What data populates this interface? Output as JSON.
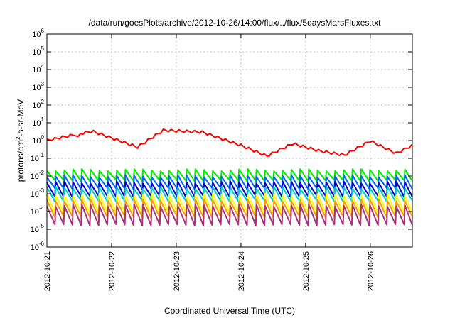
{
  "chart_data": {
    "type": "line",
    "title": "/data/run/goesPlots/archive/2012-10-26/14:00/flux/../flux/5daysMarsFluxes.txt",
    "xlabel": "Coordinated Universal Time (UTC)",
    "ylabel_base": "protons/cm",
    "ylabel_sup": "2",
    "ylabel_rest": "-s-sr-MeV",
    "y_scale": "log",
    "y_range_exp": [
      -6,
      6
    ],
    "y_ticks": [
      {
        "base": "10",
        "exp": "6",
        "value": 6
      },
      {
        "base": "10",
        "exp": "5",
        "value": 5
      },
      {
        "base": "10",
        "exp": "4",
        "value": 4
      },
      {
        "base": "10",
        "exp": "3",
        "value": 3
      },
      {
        "base": "10",
        "exp": "2",
        "value": 2
      },
      {
        "base": "10",
        "exp": "1",
        "value": 1
      },
      {
        "base": "10",
        "exp": "0",
        "value": 0
      },
      {
        "base": "10",
        "exp": "-1",
        "value": -1
      },
      {
        "base": "10",
        "exp": "-2",
        "value": -2
      },
      {
        "base": "10",
        "exp": "-3",
        "value": -3
      },
      {
        "base": "10",
        "exp": "-4",
        "value": -4
      },
      {
        "base": "10",
        "exp": "-5",
        "value": -5
      },
      {
        "base": "10",
        "exp": "-6",
        "value": -6
      }
    ],
    "x_ticks": [
      "2012-10-21",
      "2012-10-22",
      "2012-10-23",
      "2012-10-24",
      "2012-10-25",
      "2012-10-26"
    ],
    "x_range_days": [
      0,
      5.65
    ],
    "grid": true,
    "legend": "none",
    "series": [
      {
        "color": "#ff0000",
        "pattern": "smooth",
        "peaks": [
          [
            0,
            0.08
          ],
          [
            0.7,
            0.6
          ],
          [
            1.4,
            -0.3
          ],
          [
            1.8,
            0.65
          ],
          [
            2.4,
            0.55
          ],
          [
            3.0,
            -0.2
          ],
          [
            3.4,
            -0.8
          ],
          [
            3.8,
            -0.1
          ],
          [
            4.2,
            -0.5
          ],
          [
            4.6,
            -0.75
          ],
          [
            5.0,
            0.05
          ],
          [
            5.4,
            -0.65
          ],
          [
            5.65,
            -0.2
          ]
        ],
        "amp": 0.35,
        "period": 0.12
      },
      {
        "color": "#00ee00",
        "pattern": "saw",
        "hi": -1.6,
        "lo": -2.3,
        "period": 0.135
      },
      {
        "color": "#0066ff",
        "pattern": "saw",
        "hi": -1.95,
        "lo": -2.75,
        "period": 0.135
      },
      {
        "color": "#0000cc",
        "pattern": "saw",
        "hi": -2.3,
        "lo": -3.2,
        "period": 0.135
      },
      {
        "color": "#00cccc",
        "pattern": "saw",
        "hi": -2.6,
        "lo": -3.45,
        "period": 0.135
      },
      {
        "color": "#ffff00",
        "pattern": "saw",
        "hi": -3.0,
        "lo": -4.1,
        "period": 0.135
      },
      {
        "color": "#ff9900",
        "pattern": "saw",
        "hi": -3.3,
        "lo": -4.35,
        "period": 0.135
      },
      {
        "color": "#aa3377",
        "pattern": "saw",
        "hi": -3.6,
        "lo": -4.8,
        "period": 0.135
      }
    ]
  }
}
